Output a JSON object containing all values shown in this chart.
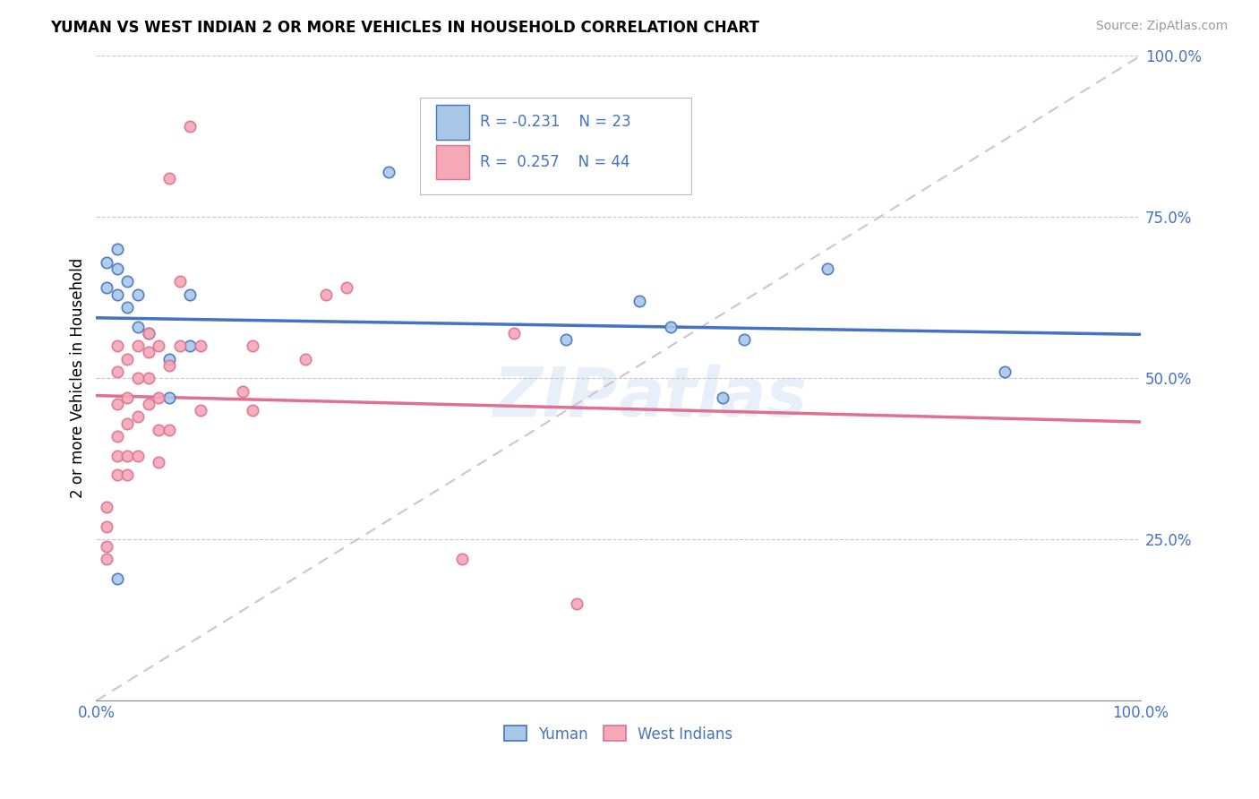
{
  "title": "YUMAN VS WEST INDIAN 2 OR MORE VEHICLES IN HOUSEHOLD CORRELATION CHART",
  "source": "Source: ZipAtlas.com",
  "ylabel": "2 or more Vehicles in Household",
  "xlim": [
    0,
    1.0
  ],
  "ylim": [
    0,
    1.0
  ],
  "watermark": "ZIPatlas",
  "blue_color": "#A8C8E8",
  "pink_color": "#F4A8B8",
  "line_blue": "#4472C4",
  "line_pink": "#E07090",
  "diagonal_color": "#D0B0C0",
  "text_color": "#4472C4",
  "blue_x": [
    0.01,
    0.01,
    0.02,
    0.02,
    0.02,
    0.03,
    0.03,
    0.04,
    0.04,
    0.05,
    0.07,
    0.07,
    0.09,
    0.09,
    0.28,
    0.45,
    0.52,
    0.55,
    0.6,
    0.62,
    0.7,
    0.87,
    0.02
  ],
  "blue_y": [
    0.68,
    0.64,
    0.7,
    0.67,
    0.63,
    0.65,
    0.61,
    0.63,
    0.58,
    0.57,
    0.53,
    0.47,
    0.63,
    0.55,
    0.82,
    0.56,
    0.62,
    0.58,
    0.47,
    0.56,
    0.67,
    0.51,
    0.19
  ],
  "pink_x": [
    0.01,
    0.01,
    0.01,
    0.01,
    0.02,
    0.02,
    0.02,
    0.02,
    0.02,
    0.02,
    0.03,
    0.03,
    0.03,
    0.03,
    0.03,
    0.04,
    0.04,
    0.04,
    0.04,
    0.05,
    0.05,
    0.05,
    0.05,
    0.06,
    0.06,
    0.06,
    0.06,
    0.07,
    0.07,
    0.07,
    0.08,
    0.08,
    0.09,
    0.1,
    0.1,
    0.14,
    0.15,
    0.15,
    0.2,
    0.22,
    0.24,
    0.35,
    0.4,
    0.46
  ],
  "pink_y": [
    0.22,
    0.24,
    0.27,
    0.3,
    0.35,
    0.38,
    0.41,
    0.46,
    0.51,
    0.55,
    0.35,
    0.38,
    0.43,
    0.47,
    0.53,
    0.38,
    0.44,
    0.5,
    0.55,
    0.46,
    0.5,
    0.54,
    0.57,
    0.37,
    0.42,
    0.47,
    0.55,
    0.42,
    0.52,
    0.81,
    0.55,
    0.65,
    0.89,
    0.45,
    0.55,
    0.48,
    0.55,
    0.45,
    0.53,
    0.63,
    0.64,
    0.22,
    0.57,
    0.15
  ],
  "figsize": [
    14.06,
    8.92
  ],
  "dpi": 100
}
